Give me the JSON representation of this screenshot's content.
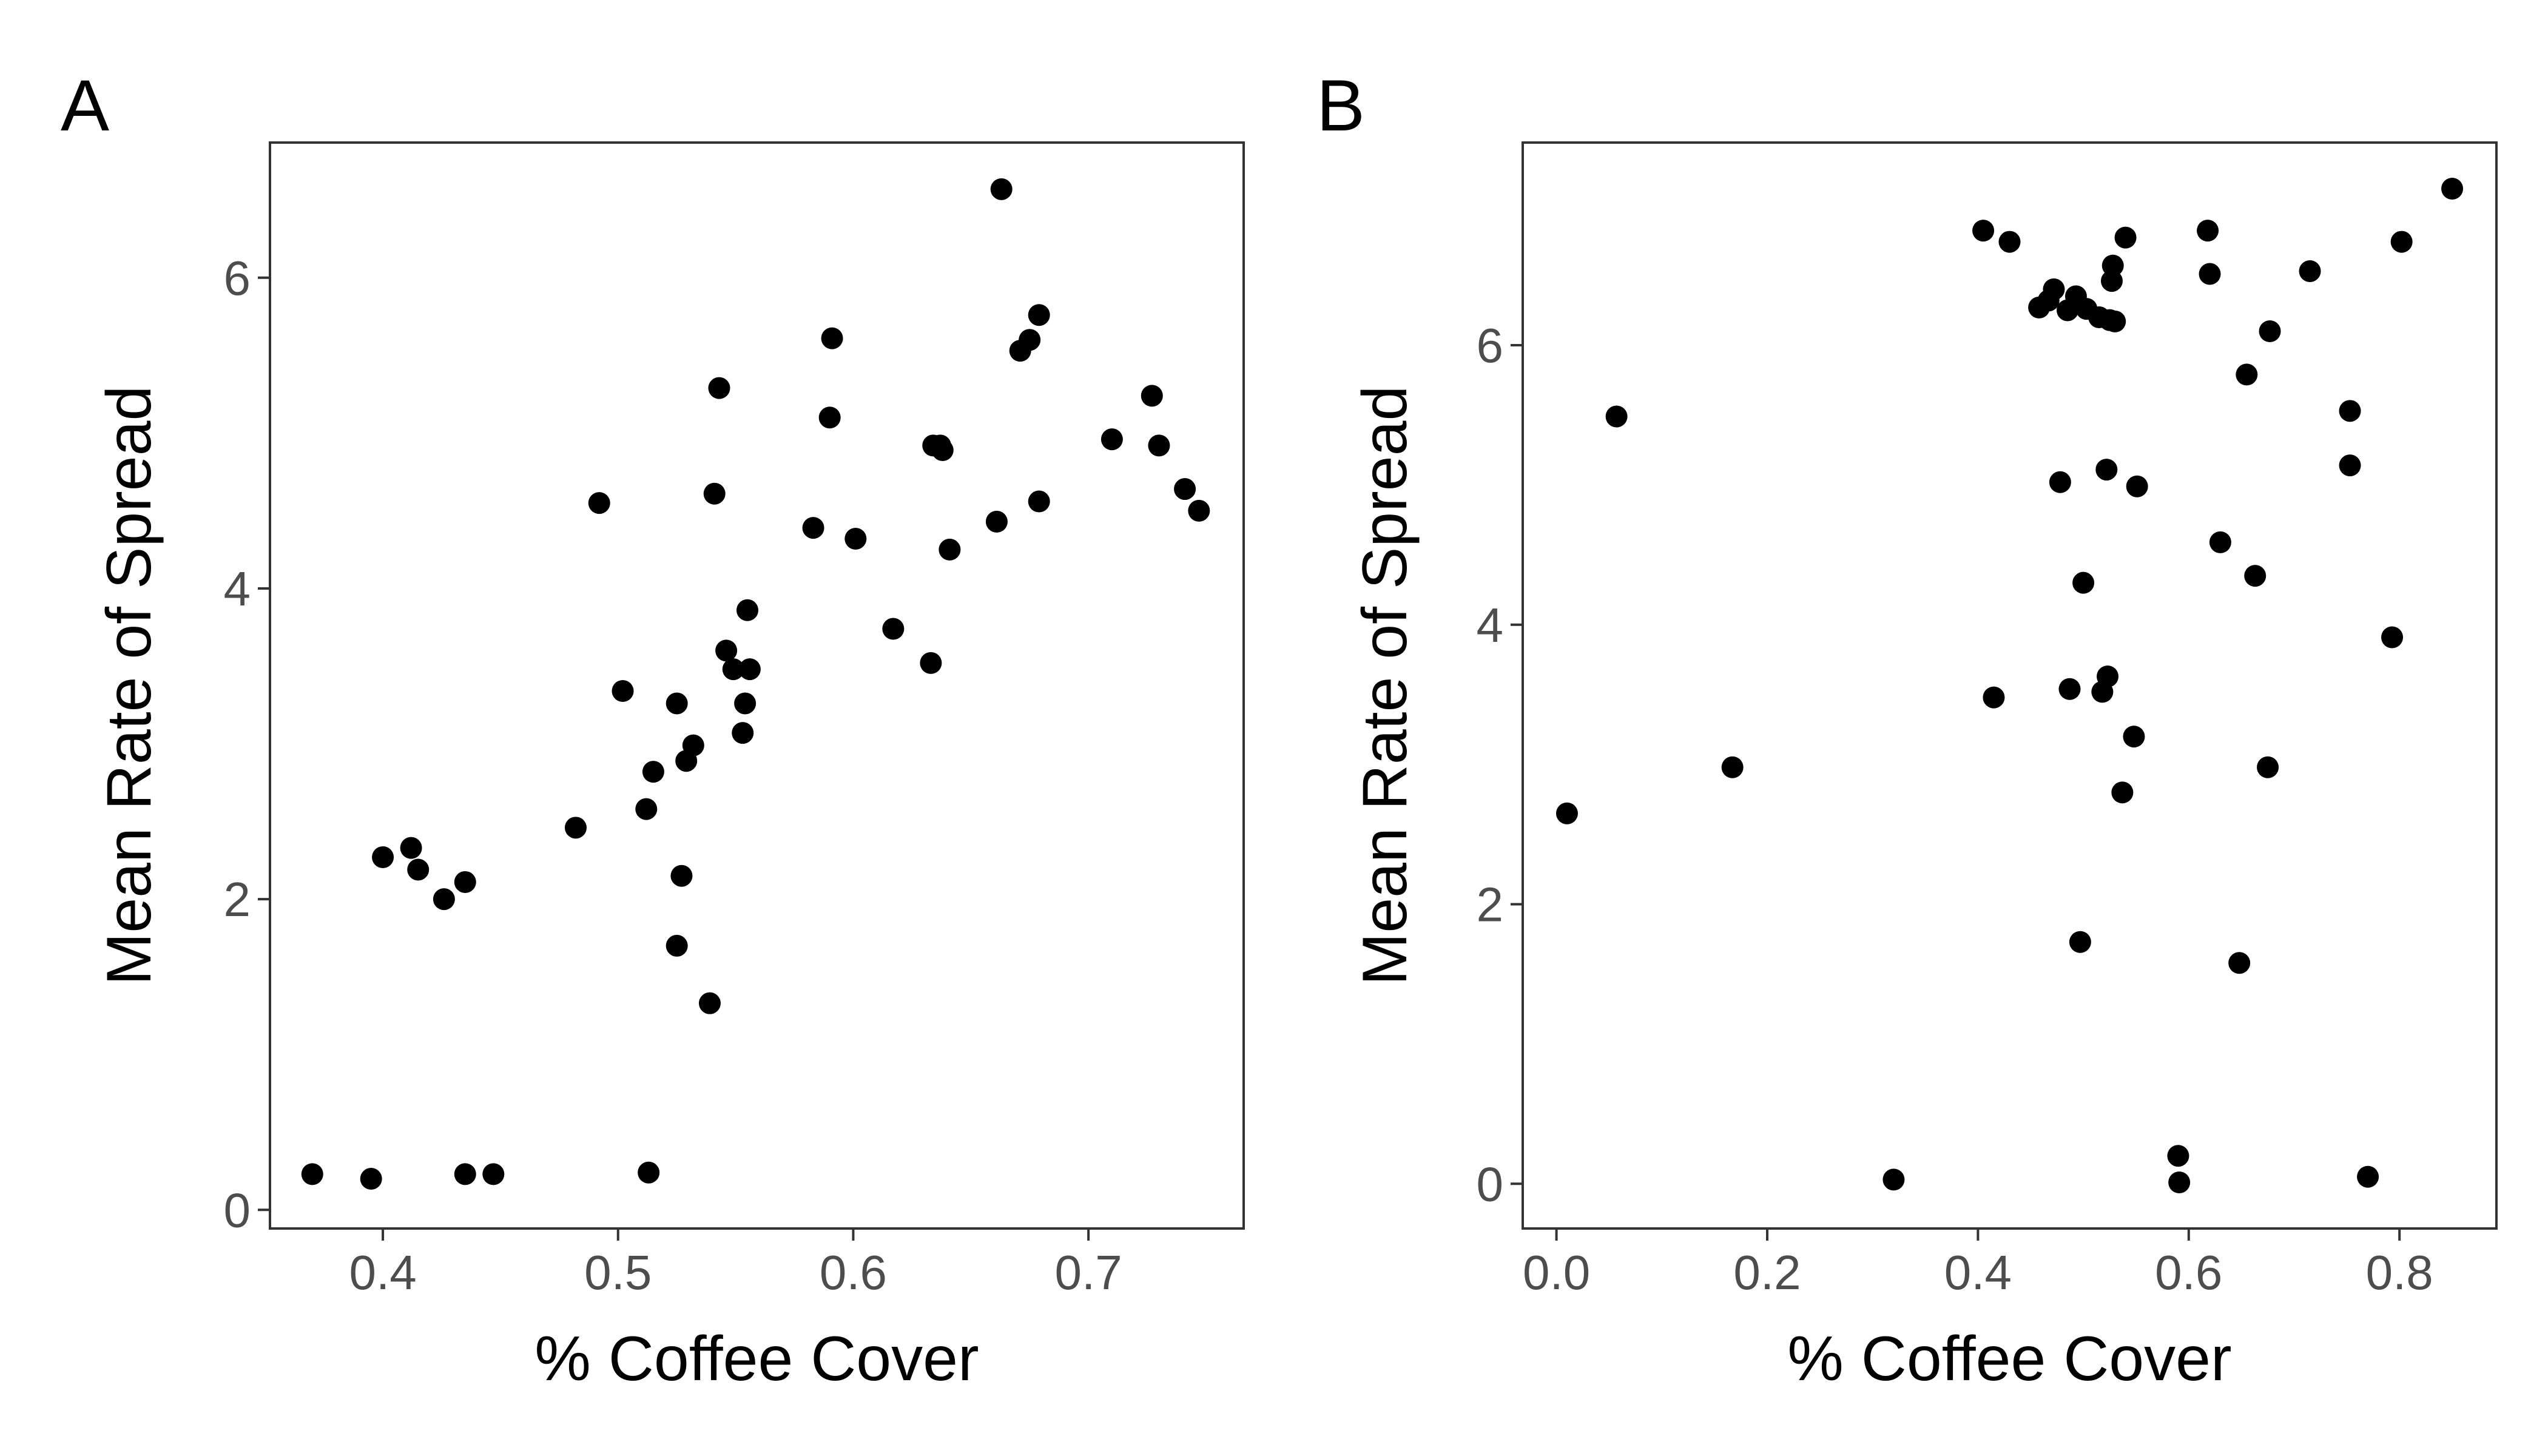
{
  "chart_data": [
    {
      "type": "scatter",
      "panel_label": "A",
      "title": "",
      "xlabel": "% Coffee Cover",
      "ylabel": "Mean Rate of Spread",
      "xlim": [
        0.352,
        0.766
      ],
      "ylim": [
        -0.12,
        6.87
      ],
      "x_ticks": [
        0.4,
        0.5,
        0.6,
        0.7
      ],
      "y_ticks": [
        0,
        2,
        4,
        6
      ],
      "x_tick_labels": [
        "0.4",
        "0.5",
        "0.6",
        "0.7"
      ],
      "y_tick_labels": [
        "0",
        "2",
        "4",
        "6"
      ],
      "grid": false,
      "legend": "none",
      "point_color": "#000000",
      "points": [
        [
          0.37,
          0.23
        ],
        [
          0.395,
          0.2
        ],
        [
          0.435,
          0.23
        ],
        [
          0.447,
          0.23
        ],
        [
          0.513,
          0.24
        ],
        [
          0.4,
          2.27
        ],
        [
          0.412,
          2.33
        ],
        [
          0.415,
          2.19
        ],
        [
          0.426,
          2.0
        ],
        [
          0.435,
          2.11
        ],
        [
          0.482,
          2.46
        ],
        [
          0.492,
          4.55
        ],
        [
          0.502,
          3.34
        ],
        [
          0.512,
          2.58
        ],
        [
          0.515,
          2.82
        ],
        [
          0.525,
          3.26
        ],
        [
          0.525,
          1.7
        ],
        [
          0.527,
          2.15
        ],
        [
          0.529,
          2.89
        ],
        [
          0.532,
          2.99
        ],
        [
          0.539,
          1.33
        ],
        [
          0.541,
          4.61
        ],
        [
          0.543,
          5.29
        ],
        [
          0.546,
          3.6
        ],
        [
          0.549,
          3.48
        ],
        [
          0.553,
          3.07
        ],
        [
          0.554,
          3.26
        ],
        [
          0.555,
          3.86
        ],
        [
          0.556,
          3.48
        ],
        [
          0.583,
          4.39
        ],
        [
          0.59,
          5.1
        ],
        [
          0.591,
          5.61
        ],
        [
          0.601,
          4.32
        ],
        [
          0.617,
          3.74
        ],
        [
          0.633,
          3.52
        ],
        [
          0.634,
          4.92
        ],
        [
          0.637,
          4.92
        ],
        [
          0.638,
          4.89
        ],
        [
          0.641,
          4.25
        ],
        [
          0.661,
          4.43
        ],
        [
          0.663,
          6.57
        ],
        [
          0.671,
          5.53
        ],
        [
          0.675,
          5.6
        ],
        [
          0.679,
          5.76
        ],
        [
          0.679,
          4.56
        ],
        [
          0.71,
          4.96
        ],
        [
          0.727,
          5.24
        ],
        [
          0.73,
          4.92
        ],
        [
          0.741,
          4.64
        ],
        [
          0.747,
          4.5
        ]
      ]
    },
    {
      "type": "scatter",
      "panel_label": "B",
      "title": "",
      "xlabel": "% Coffee Cover",
      "ylabel": "Mean Rate of Spread",
      "xlim": [
        -0.032,
        0.892
      ],
      "ylim": [
        -0.32,
        7.45
      ],
      "x_ticks": [
        0.0,
        0.2,
        0.4,
        0.6,
        0.8
      ],
      "y_ticks": [
        0,
        2,
        4,
        6
      ],
      "x_tick_labels": [
        "0.0",
        "0.2",
        "0.4",
        "0.6",
        "0.8"
      ],
      "y_tick_labels": [
        "0",
        "2",
        "4",
        "6"
      ],
      "grid": false,
      "legend": "none",
      "point_color": "#000000",
      "points": [
        [
          0.01,
          2.65
        ],
        [
          0.057,
          5.49
        ],
        [
          0.167,
          2.98
        ],
        [
          0.32,
          0.03
        ],
        [
          0.405,
          6.82
        ],
        [
          0.415,
          3.48
        ],
        [
          0.43,
          6.74
        ],
        [
          0.458,
          6.27
        ],
        [
          0.467,
          6.32
        ],
        [
          0.472,
          6.4
        ],
        [
          0.478,
          5.02
        ],
        [
          0.485,
          6.25
        ],
        [
          0.487,
          3.54
        ],
        [
          0.493,
          6.35
        ],
        [
          0.497,
          1.73
        ],
        [
          0.5,
          4.3
        ],
        [
          0.503,
          6.26
        ],
        [
          0.515,
          6.2
        ],
        [
          0.518,
          3.52
        ],
        [
          0.522,
          5.11
        ],
        [
          0.523,
          3.63
        ],
        [
          0.525,
          6.18
        ],
        [
          0.527,
          6.46
        ],
        [
          0.528,
          6.57
        ],
        [
          0.53,
          6.17
        ],
        [
          0.537,
          2.8
        ],
        [
          0.54,
          6.77
        ],
        [
          0.548,
          3.2
        ],
        [
          0.551,
          4.99
        ],
        [
          0.59,
          0.2
        ],
        [
          0.591,
          0.01
        ],
        [
          0.618,
          6.82
        ],
        [
          0.62,
          6.51
        ],
        [
          0.63,
          4.59
        ],
        [
          0.648,
          1.58
        ],
        [
          0.655,
          5.79
        ],
        [
          0.663,
          4.35
        ],
        [
          0.675,
          2.98
        ],
        [
          0.677,
          6.1
        ],
        [
          0.715,
          6.53
        ],
        [
          0.753,
          5.53
        ],
        [
          0.753,
          5.14
        ],
        [
          0.77,
          0.05
        ],
        [
          0.793,
          3.91
        ],
        [
          0.802,
          6.74
        ],
        [
          0.85,
          7.12
        ]
      ]
    }
  ]
}
